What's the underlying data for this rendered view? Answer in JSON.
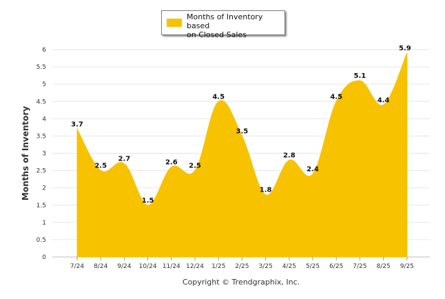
{
  "chart_data": {
    "type": "area",
    "series_name": "Months of Inventory based on Closed Sales",
    "categories": [
      "7/24",
      "8/24",
      "9/24",
      "10/24",
      "11/24",
      "12/24",
      "1/25",
      "2/25",
      "3/25",
      "4/25",
      "5/25",
      "6/25",
      "7/25",
      "8/25",
      "9/25"
    ],
    "values": [
      3.7,
      2.5,
      2.7,
      1.5,
      2.6,
      2.5,
      4.5,
      3.5,
      1.8,
      2.8,
      2.4,
      4.5,
      5.1,
      4.4,
      5.9
    ],
    "value_labels": [
      "3.7",
      "2.5",
      "2.7",
      "1.5",
      "2.6",
      "2.5",
      "4.5",
      "3.5",
      "1.8",
      "2.8",
      "2.4",
      "4.5",
      "5.1",
      "4.4",
      "5.9"
    ],
    "ylabel": "Months of Inventory",
    "xlabel": "",
    "ylim": [
      0,
      6
    ],
    "yticks": [
      "0",
      "0.5",
      "1",
      "1.5",
      "2",
      "2.5",
      "3",
      "3.5",
      "4",
      "4.5",
      "5",
      "5.5",
      "6"
    ],
    "grid": true,
    "legend_position": "top-center",
    "color": "#f7c200"
  },
  "legend": {
    "label": "Months of Inventory based\non Closed Sales"
  },
  "footer": {
    "copyright": "Copyright © Trendgraphix, Inc."
  }
}
